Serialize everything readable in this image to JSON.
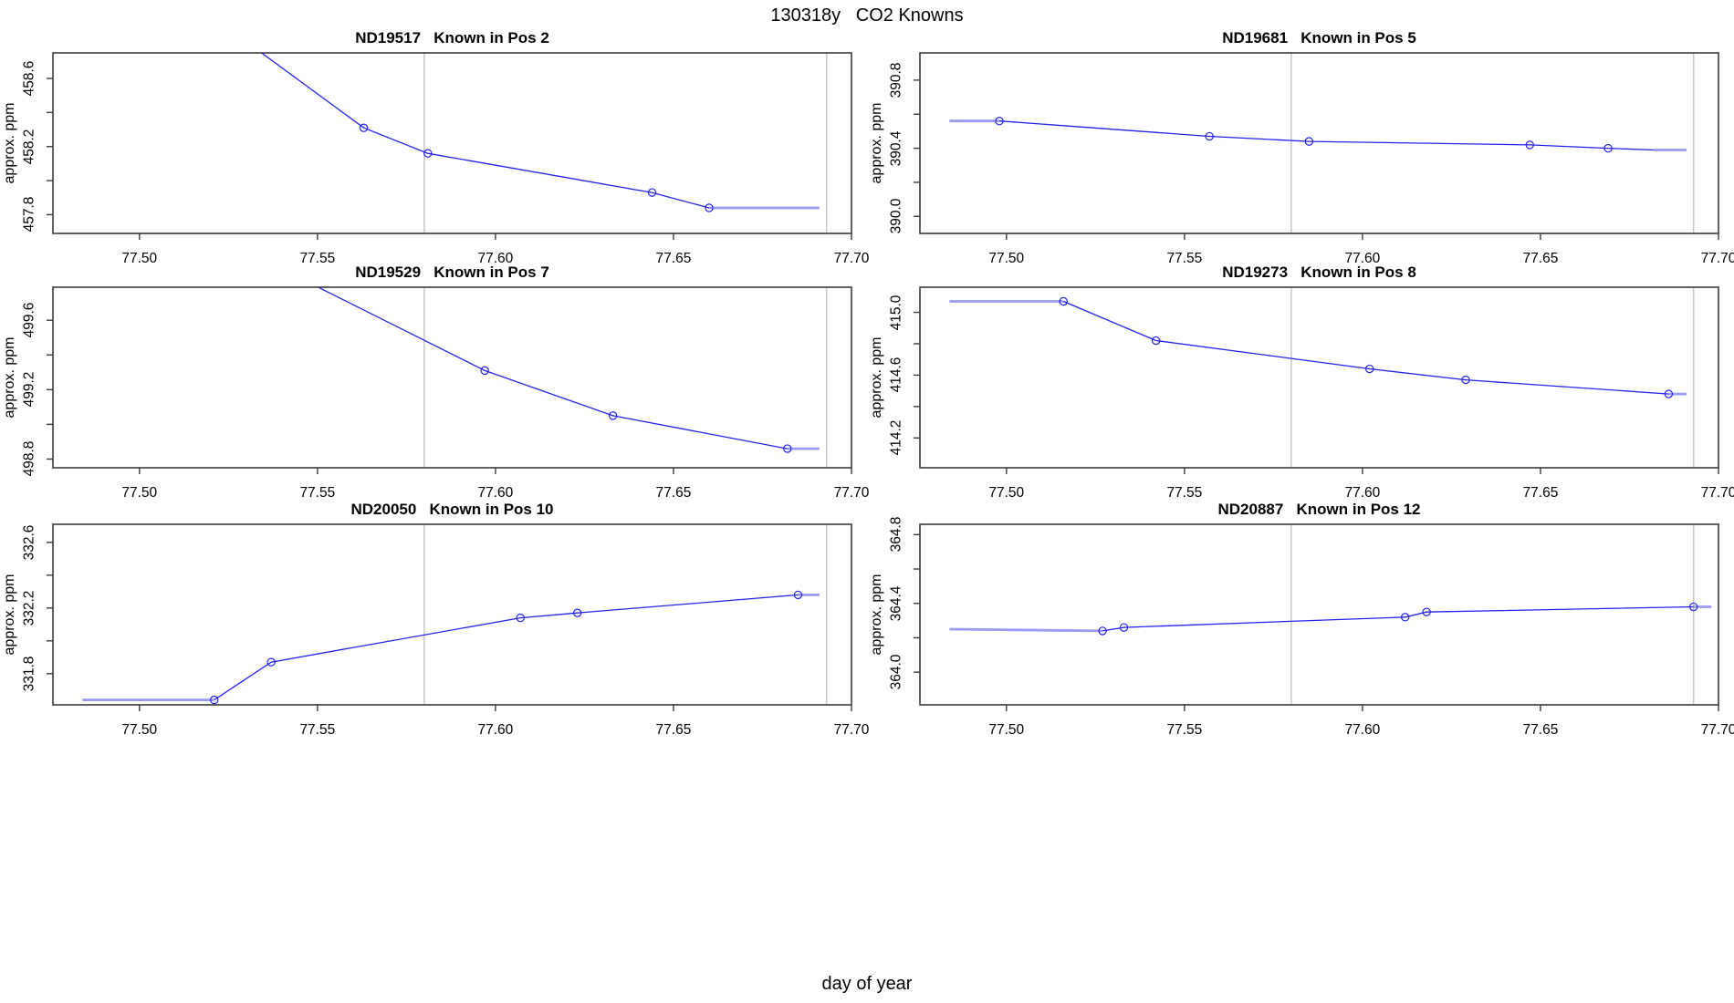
{
  "figure": {
    "title": "130318y   CO2 Knowns",
    "xlabel": "day of year",
    "background": "#ffffff"
  },
  "colors": {
    "line": "#2222ee",
    "line_light": "#9999f6",
    "marker": "#2222ee",
    "vline": "#c6c6c6",
    "frame": "#3a3a3a",
    "text": "#000000"
  },
  "chart_data": {
    "type": "line",
    "xlabel": "day of year",
    "axis": {
      "xlim": [
        77.4757,
        77.7
      ],
      "xticks": [
        77.5,
        77.55,
        77.6,
        77.65,
        77.7
      ],
      "xtick_labels": [
        "77.50",
        "77.55",
        "77.60",
        "77.65",
        "77.70"
      ],
      "vlines": [
        77.58,
        77.693
      ],
      "ytick_step": 0.2
    },
    "panels": [
      {
        "name": "ND19517",
        "pos": "Known in Pos 2",
        "title": "ND19517   Known in Pos 2",
        "ylab": "approx. ppm",
        "ylim": [
          457.69,
          458.75
        ],
        "ytick_labeled": [
          457.8,
          458.2,
          458.6
        ],
        "ytick_labels": [
          "457.8",
          "458.2",
          "458.6"
        ],
        "line": [
          [
            77.518,
            459.0
          ],
          [
            77.563,
            458.31
          ],
          [
            77.581,
            458.16
          ],
          [
            77.644,
            457.93
          ],
          [
            77.66,
            457.84
          ]
        ],
        "markers": [
          [
            77.563,
            458.31
          ],
          [
            77.581,
            458.16
          ],
          [
            77.644,
            457.93
          ],
          [
            77.66,
            457.84
          ]
        ],
        "lead": null,
        "tail": [
          [
            77.66,
            457.84
          ],
          [
            77.691,
            457.84
          ]
        ]
      },
      {
        "name": "ND19681",
        "pos": "Known in Pos 5",
        "title": "ND19681   Known in Pos 5",
        "ylab": "approx. ppm",
        "ylim": [
          389.9,
          390.96
        ],
        "ytick_labeled": [
          390.0,
          390.4,
          390.8
        ],
        "ytick_labels": [
          "390.0",
          "390.4",
          "390.8"
        ],
        "line": [
          [
            77.498,
            390.56
          ],
          [
            77.557,
            390.47
          ],
          [
            77.585,
            390.44
          ],
          [
            77.647,
            390.42
          ],
          [
            77.669,
            390.4
          ],
          [
            77.682,
            390.39
          ]
        ],
        "markers": [
          [
            77.498,
            390.56
          ],
          [
            77.557,
            390.47
          ],
          [
            77.585,
            390.44
          ],
          [
            77.647,
            390.42
          ],
          [
            77.669,
            390.4
          ]
        ],
        "lead": [
          [
            77.484,
            390.56
          ],
          [
            77.498,
            390.56
          ]
        ],
        "tail": [
          [
            77.682,
            390.39
          ],
          [
            77.691,
            390.39
          ]
        ]
      },
      {
        "name": "ND19529",
        "pos": "Known in Pos 7",
        "title": "ND19529   Known in Pos 7",
        "ylab": "approx. ppm",
        "ylim": [
          498.75,
          499.79
        ],
        "ytick_labeled": [
          498.8,
          499.2,
          499.6
        ],
        "ytick_labels": [
          "498.8",
          "499.2",
          "499.6"
        ],
        "line": [
          [
            77.52,
            500.1
          ],
          [
            77.597,
            499.31
          ],
          [
            77.633,
            499.05
          ],
          [
            77.682,
            498.86
          ]
        ],
        "markers": [
          [
            77.597,
            499.31
          ],
          [
            77.633,
            499.05
          ],
          [
            77.682,
            498.86
          ]
        ],
        "lead": null,
        "tail": [
          [
            77.682,
            498.86
          ],
          [
            77.691,
            498.86
          ]
        ]
      },
      {
        "name": "ND19273",
        "pos": "Known in Pos 8",
        "title": "ND19273   Known in Pos 8",
        "ylab": "approx. ppm",
        "ylim": [
          414.01,
          415.16
        ],
        "ytick_labeled": [
          414.2,
          414.6,
          415.0
        ],
        "ytick_labels": [
          "414.2",
          "414.6",
          "415.0"
        ],
        "line": [
          [
            77.516,
            415.07
          ],
          [
            77.542,
            414.82
          ],
          [
            77.602,
            414.64
          ],
          [
            77.629,
            414.57
          ],
          [
            77.686,
            414.48
          ]
        ],
        "markers": [
          [
            77.516,
            415.07
          ],
          [
            77.542,
            414.82
          ],
          [
            77.602,
            414.64
          ],
          [
            77.629,
            414.57
          ],
          [
            77.686,
            414.48
          ]
        ],
        "lead": [
          [
            77.484,
            415.07
          ],
          [
            77.516,
            415.07
          ]
        ],
        "tail": [
          [
            77.686,
            414.48
          ],
          [
            77.691,
            414.48
          ]
        ]
      },
      {
        "name": "ND20050",
        "pos": "Known in Pos 10",
        "title": "ND20050   Known in Pos 10",
        "ylab": "approx. ppm",
        "ylim": [
          331.61,
          332.71
        ],
        "ytick_labeled": [
          331.8,
          332.2,
          332.6
        ],
        "ytick_labels": [
          "331.8",
          "332.2",
          "332.6"
        ],
        "line": [
          [
            77.521,
            331.64
          ],
          [
            77.537,
            331.87
          ],
          [
            77.607,
            332.14
          ],
          [
            77.623,
            332.17
          ],
          [
            77.685,
            332.28
          ]
        ],
        "markers": [
          [
            77.521,
            331.64
          ],
          [
            77.537,
            331.87
          ],
          [
            77.607,
            332.14
          ],
          [
            77.623,
            332.17
          ],
          [
            77.685,
            332.28
          ]
        ],
        "lead": [
          [
            77.484,
            331.64
          ],
          [
            77.521,
            331.64
          ]
        ],
        "tail": [
          [
            77.685,
            332.28
          ],
          [
            77.691,
            332.28
          ]
        ]
      },
      {
        "name": "ND20887",
        "pos": "Known in Pos 12",
        "title": "ND20887   Known in Pos 12",
        "ylab": "approx. ppm",
        "ylim": [
          363.81,
          364.86
        ],
        "ytick_labeled": [
          364.0,
          364.4,
          364.8
        ],
        "ytick_labels": [
          "364.0",
          "364.4",
          "364.8"
        ],
        "line": [
          [
            77.527,
            364.24
          ],
          [
            77.533,
            364.26
          ],
          [
            77.612,
            364.32
          ],
          [
            77.618,
            364.35
          ],
          [
            77.693,
            364.38
          ]
        ],
        "markers": [
          [
            77.527,
            364.24
          ],
          [
            77.533,
            364.26
          ],
          [
            77.612,
            364.32
          ],
          [
            77.618,
            364.35
          ],
          [
            77.693,
            364.38
          ]
        ],
        "lead": [
          [
            77.484,
            364.25
          ],
          [
            77.527,
            364.24
          ]
        ],
        "tail": [
          [
            77.693,
            364.38
          ],
          [
            77.698,
            364.38
          ]
        ]
      }
    ]
  }
}
